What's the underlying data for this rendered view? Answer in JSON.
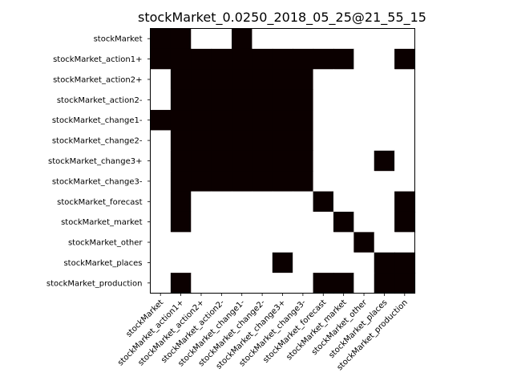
{
  "chart_data": {
    "type": "heatmap",
    "title": "stockMarket_0.0250_2018_05_25@21_55_15",
    "xlabel": "",
    "ylabel": "",
    "grid": false,
    "colors": {
      "on": "#0b0000",
      "off": "#ffffff",
      "frame": "#000000"
    },
    "rows": [
      "stockMarket",
      "stockMarket_action1+",
      "stockMarket_action2+",
      "stockMarket_action2-",
      "stockMarket_change1-",
      "stockMarket_change2-",
      "stockMarket_change3+",
      "stockMarket_change3-",
      "stockMarket_forecast",
      "stockMarket_market",
      "stockMarket_other",
      "stockMarket_places",
      "stockMarket_production"
    ],
    "columns": [
      "stockMarket",
      "stockMarket_action1+",
      "stockMarket_action2+",
      "stockMarket_action2-",
      "stockMarket_change1-",
      "stockMarket_change2-",
      "stockMarket_change3+",
      "stockMarket_change3-",
      "stockMarket_forecast",
      "stockMarket_market",
      "stockMarket_other",
      "stockMarket_places",
      "stockMarket_production"
    ],
    "matrix": [
      [
        1,
        1,
        0,
        0,
        1,
        0,
        0,
        0,
        0,
        0,
        0,
        0,
        0
      ],
      [
        1,
        1,
        1,
        1,
        1,
        1,
        1,
        1,
        1,
        1,
        0,
        0,
        1
      ],
      [
        0,
        1,
        1,
        1,
        1,
        1,
        1,
        1,
        0,
        0,
        0,
        0,
        0
      ],
      [
        0,
        1,
        1,
        1,
        1,
        1,
        1,
        1,
        0,
        0,
        0,
        0,
        0
      ],
      [
        1,
        1,
        1,
        1,
        1,
        1,
        1,
        1,
        0,
        0,
        0,
        0,
        0
      ],
      [
        0,
        1,
        1,
        1,
        1,
        1,
        1,
        1,
        0,
        0,
        0,
        0,
        0
      ],
      [
        0,
        1,
        1,
        1,
        1,
        1,
        1,
        1,
        0,
        0,
        0,
        1,
        0
      ],
      [
        0,
        1,
        1,
        1,
        1,
        1,
        1,
        1,
        0,
        0,
        0,
        0,
        0
      ],
      [
        0,
        1,
        0,
        0,
        0,
        0,
        0,
        0,
        1,
        0,
        0,
        0,
        1
      ],
      [
        0,
        1,
        0,
        0,
        0,
        0,
        0,
        0,
        0,
        1,
        0,
        0,
        1
      ],
      [
        0,
        0,
        0,
        0,
        0,
        0,
        0,
        0,
        0,
        0,
        1,
        0,
        0
      ],
      [
        0,
        0,
        0,
        0,
        0,
        0,
        1,
        0,
        0,
        0,
        0,
        1,
        1
      ],
      [
        0,
        1,
        0,
        0,
        0,
        0,
        0,
        0,
        1,
        1,
        0,
        1,
        1
      ]
    ]
  }
}
